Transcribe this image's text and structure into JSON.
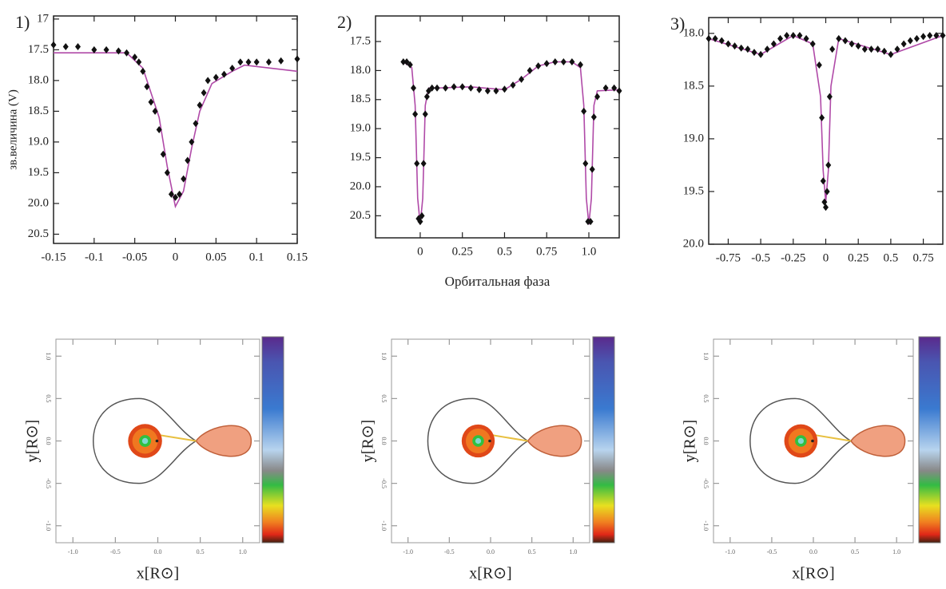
{
  "chart_data": [
    {
      "type": "lightcurve",
      "label": "1)",
      "ylabel": "зв.величина (V)",
      "xlim": [
        -0.15,
        0.15
      ],
      "ylim": [
        20.65,
        16.95
      ],
      "xticks": [
        -0.15,
        -0.1,
        -0.05,
        0,
        0.05,
        0.1,
        0.15
      ],
      "yticks": [
        17,
        17.5,
        {
          "value": 18,
          "label": "18.0"
        },
        18.5,
        {
          "value": 19,
          "label": "19.0"
        },
        19.5,
        {
          "value": 20,
          "label": "20.0"
        },
        20.5
      ],
      "color": "#111111",
      "model_color": "#b04aa8",
      "x": [
        -0.15,
        -0.135,
        -0.12,
        -0.1,
        -0.085,
        -0.07,
        -0.06,
        -0.05,
        -0.045,
        -0.04,
        -0.035,
        -0.03,
        -0.025,
        -0.02,
        -0.015,
        -0.01,
        -0.005,
        0,
        0.005,
        0.01,
        0.015,
        0.02,
        0.025,
        0.03,
        0.035,
        0.04,
        0.05,
        0.06,
        0.07,
        0.08,
        0.09,
        0.1,
        0.115,
        0.13,
        0.15
      ],
      "values": [
        17.42,
        17.45,
        17.45,
        17.5,
        17.5,
        17.52,
        17.55,
        17.62,
        17.7,
        17.85,
        18.1,
        18.35,
        18.5,
        18.8,
        19.2,
        19.5,
        19.85,
        19.9,
        19.85,
        19.6,
        19.3,
        19.0,
        18.7,
        18.4,
        18.2,
        18.0,
        17.95,
        17.9,
        17.8,
        17.7,
        17.7,
        17.7,
        17.7,
        17.68,
        17.65
      ],
      "model_x": [
        -0.15,
        -0.06,
        -0.04,
        -0.02,
        -0.01,
        0,
        0.01,
        0.02,
        0.03,
        0.045,
        0.07,
        0.085,
        0.15
      ],
      "model_values": [
        17.55,
        17.55,
        17.8,
        18.6,
        19.4,
        20.05,
        19.8,
        19.1,
        18.5,
        18.05,
        17.85,
        17.75,
        17.85
      ]
    },
    {
      "type": "lightcurve",
      "label": "2)",
      "xlabel": "Орбитальная фаза",
      "xlim": [
        -0.265,
        1.18
      ],
      "ylim": [
        20.88,
        17.06
      ],
      "xticks": [
        0,
        0.25,
        0.5,
        0.75,
        {
          "value": 1,
          "label": "1.0"
        }
      ],
      "yticks": [
        17.5,
        {
          "value": 18,
          "label": "18.0"
        },
        18.5,
        {
          "value": 19,
          "label": "19.0"
        },
        19.5,
        {
          "value": 20,
          "label": "20.0"
        },
        20.5
      ],
      "color": "#111111",
      "model_color": "#b04aa8",
      "x": [
        -0.1,
        -0.08,
        -0.06,
        -0.04,
        -0.03,
        -0.02,
        -0.01,
        0,
        0.01,
        0.02,
        0.03,
        0.04,
        0.05,
        0.07,
        0.1,
        0.15,
        0.2,
        0.25,
        0.3,
        0.35,
        0.4,
        0.45,
        0.5,
        0.55,
        0.6,
        0.65,
        0.7,
        0.75,
        0.8,
        0.85,
        0.9,
        0.95,
        0.97,
        0.98,
        0.995,
        1.01,
        1.02,
        1.03,
        1.05,
        1.1,
        1.15,
        1.18
      ],
      "values": [
        17.85,
        17.85,
        17.9,
        18.3,
        18.75,
        19.6,
        20.55,
        20.6,
        20.5,
        19.6,
        18.75,
        18.45,
        18.35,
        18.3,
        18.3,
        18.3,
        18.28,
        18.28,
        18.3,
        18.33,
        18.35,
        18.35,
        18.32,
        18.25,
        18.15,
        18.0,
        17.92,
        17.88,
        17.85,
        17.85,
        17.85,
        17.9,
        18.7,
        19.6,
        20.6,
        20.6,
        19.7,
        18.8,
        18.45,
        18.3,
        18.3,
        18.35
      ],
      "model_x": [
        -0.1,
        -0.05,
        -0.03,
        -0.015,
        0,
        0.015,
        0.03,
        0.05,
        0.1,
        0.3,
        0.5,
        0.6,
        0.7,
        0.8,
        0.9,
        0.95,
        0.97,
        0.985,
        1.0,
        1.015,
        1.03,
        1.05,
        1.18
      ],
      "model_values": [
        17.85,
        17.95,
        18.6,
        20.2,
        20.65,
        20.2,
        18.6,
        18.3,
        18.3,
        18.28,
        18.33,
        18.15,
        17.92,
        17.85,
        17.85,
        17.95,
        18.6,
        20.2,
        20.65,
        20.2,
        18.6,
        18.35,
        18.33
      ]
    },
    {
      "type": "lightcurve",
      "label": "3)",
      "xlim": [
        -0.9,
        0.9
      ],
      "ylim": [
        20.0,
        17.85
      ],
      "xticks": [
        -0.75,
        -0.5,
        -0.25,
        0,
        0.25,
        0.5,
        0.75
      ],
      "yticks": [
        {
          "value": 18,
          "label": "18.0"
        },
        18.5,
        {
          "value": 19,
          "label": "19.0"
        },
        19.5,
        {
          "value": 20,
          "label": "20.0"
        }
      ],
      "color": "#111111",
      "model_color": "#b04aa8",
      "x": [
        -0.9,
        -0.85,
        -0.8,
        -0.75,
        -0.7,
        -0.65,
        -0.6,
        -0.55,
        -0.5,
        -0.45,
        -0.4,
        -0.35,
        -0.3,
        -0.25,
        -0.2,
        -0.15,
        -0.1,
        -0.05,
        -0.03,
        -0.02,
        -0.01,
        0,
        0.01,
        0.02,
        0.03,
        0.05,
        0.1,
        0.15,
        0.2,
        0.25,
        0.3,
        0.35,
        0.4,
        0.45,
        0.5,
        0.55,
        0.6,
        0.65,
        0.7,
        0.75,
        0.8,
        0.85,
        0.9
      ],
      "values": [
        18.05,
        18.05,
        18.07,
        18.1,
        18.12,
        18.14,
        18.15,
        18.18,
        18.2,
        18.15,
        18.1,
        18.05,
        18.02,
        18.02,
        18.02,
        18.05,
        18.1,
        18.3,
        18.8,
        19.4,
        19.6,
        19.65,
        19.5,
        19.25,
        18.6,
        18.15,
        18.05,
        18.07,
        18.1,
        18.12,
        18.15,
        18.15,
        18.15,
        18.17,
        18.2,
        18.15,
        18.1,
        18.07,
        18.05,
        18.03,
        18.02,
        18.02,
        18.02
      ],
      "model_x": [
        -0.9,
        -0.5,
        -0.25,
        -0.1,
        -0.04,
        -0.02,
        0,
        0.02,
        0.04,
        0.1,
        0.5,
        0.9
      ],
      "model_values": [
        18.05,
        18.2,
        18.02,
        18.1,
        18.6,
        19.3,
        19.6,
        19.3,
        18.5,
        18.05,
        18.2,
        18.02
      ]
    },
    {
      "type": "roche",
      "xlabel": "x[R⊙]",
      "ylabel": "y[R⊙]",
      "xlim": [
        -1.2,
        1.2
      ],
      "ylim": [
        -1.2,
        1.2
      ],
      "xticks": [
        {
          "value": -1,
          "label": "-1.0"
        },
        -0.5,
        {
          "value": 0,
          "label": "0.0"
        },
        0.5,
        {
          "value": 1,
          "label": "1.0"
        }
      ],
      "yticks": [
        {
          "value": -1,
          "label": "-1.0"
        },
        -0.5,
        {
          "value": 0,
          "label": "0.0"
        },
        0.5,
        {
          "value": 1,
          "label": "1.0"
        }
      ]
    },
    {
      "type": "roche",
      "xlabel": "x[R⊙]",
      "ylabel": "y[R⊙]",
      "xlim": [
        -1.2,
        1.2
      ],
      "ylim": [
        -1.2,
        1.2
      ],
      "xticks": [
        {
          "value": -1,
          "label": "-1.0"
        },
        -0.5,
        {
          "value": 0,
          "label": "0.0"
        },
        0.5,
        {
          "value": 1,
          "label": "1.0"
        }
      ],
      "yticks": [
        {
          "value": -1,
          "label": "-1.0"
        },
        -0.5,
        {
          "value": 0,
          "label": "0.0"
        },
        0.5,
        {
          "value": 1,
          "label": "1.0"
        }
      ]
    },
    {
      "type": "roche",
      "xlabel": "x[R⊙]",
      "ylabel": "y[R⊙]",
      "xlim": [
        -1.2,
        1.2
      ],
      "ylim": [
        -1.2,
        1.2
      ],
      "xticks": [
        {
          "value": -1,
          "label": "-1.0"
        },
        -0.5,
        {
          "value": 0,
          "label": "0.0"
        },
        0.5,
        {
          "value": 1,
          "label": "1.0"
        }
      ],
      "yticks": [
        {
          "value": -1,
          "label": "-1.0"
        },
        -0.5,
        {
          "value": 0,
          "label": "0.0"
        },
        0.5,
        {
          "value": 1,
          "label": "1.0"
        }
      ]
    }
  ]
}
